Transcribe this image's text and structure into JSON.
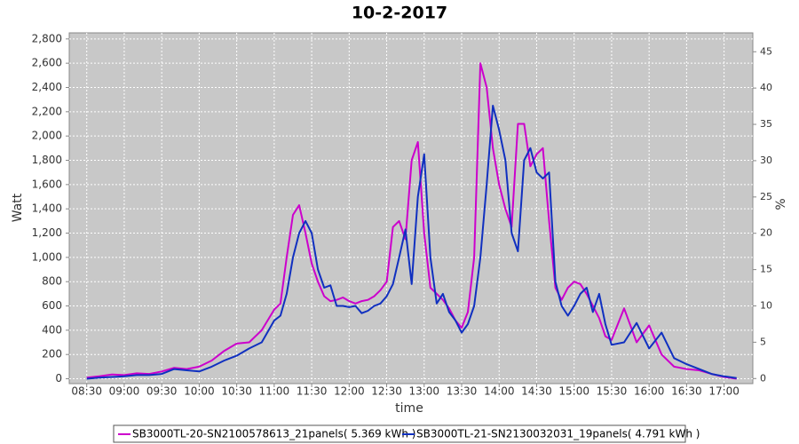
{
  "chart_data": {
    "type": "line",
    "title": "10-2-2017",
    "x_label": "time",
    "y_label": "Watt",
    "y2_label": "%",
    "x": [
      "08:30",
      "08:40",
      "08:50",
      "09:00",
      "09:10",
      "09:20",
      "09:30",
      "09:40",
      "09:50",
      "10:00",
      "10:10",
      "10:20",
      "10:30",
      "10:40",
      "10:50",
      "11:00",
      "11:05",
      "11:10",
      "11:15",
      "11:20",
      "11:25",
      "11:30",
      "11:35",
      "11:40",
      "11:45",
      "11:50",
      "11:55",
      "12:00",
      "12:05",
      "12:10",
      "12:15",
      "12:20",
      "12:25",
      "12:30",
      "12:35",
      "12:40",
      "12:45",
      "12:50",
      "12:55",
      "13:00",
      "13:05",
      "13:10",
      "13:15",
      "13:20",
      "13:25",
      "13:30",
      "13:35",
      "13:40",
      "13:45",
      "13:50",
      "13:55",
      "14:00",
      "14:05",
      "14:10",
      "14:15",
      "14:20",
      "14:25",
      "14:30",
      "14:35",
      "14:40",
      "14:45",
      "14:50",
      "14:55",
      "15:00",
      "15:05",
      "15:10",
      "15:15",
      "15:20",
      "15:25",
      "15:30",
      "15:40",
      "15:50",
      "16:00",
      "16:10",
      "16:20",
      "16:30",
      "16:40",
      "16:50",
      "17:00",
      "17:10"
    ],
    "series": [
      {
        "name": "SB3000TL-20-SN2100578613_21panels( 5.369 kWh )",
        "color": "#cc00cc",
        "values": [
          10,
          20,
          35,
          30,
          45,
          40,
          60,
          90,
          80,
          100,
          150,
          230,
          290,
          300,
          400,
          570,
          620,
          1000,
          1350,
          1430,
          1200,
          950,
          800,
          680,
          640,
          650,
          670,
          640,
          620,
          640,
          650,
          680,
          730,
          800,
          1250,
          1300,
          1150,
          1800,
          1950,
          1200,
          750,
          700,
          650,
          580,
          480,
          420,
          550,
          1000,
          2600,
          2400,
          1900,
          1600,
          1400,
          1250,
          2100,
          2100,
          1750,
          1850,
          1900,
          1300,
          750,
          650,
          750,
          800,
          780,
          700,
          600,
          500,
          350,
          320,
          580,
          300,
          440,
          200,
          100,
          80,
          70,
          40,
          15,
          0
        ]
      },
      {
        "name": "SB3000TL-21-SN2130032031_19panels( 4.791 kWh )",
        "color": "#1030c0",
        "values": [
          0,
          10,
          15,
          20,
          30,
          30,
          40,
          80,
          70,
          60,
          100,
          150,
          190,
          250,
          300,
          480,
          520,
          700,
          1000,
          1200,
          1300,
          1200,
          900,
          750,
          770,
          600,
          600,
          590,
          600,
          540,
          560,
          600,
          620,
          680,
          780,
          1000,
          1230,
          780,
          1500,
          1850,
          1000,
          620,
          700,
          550,
          480,
          380,
          450,
          600,
          1000,
          1600,
          2250,
          2050,
          1800,
          1200,
          1050,
          1800,
          1900,
          1700,
          1650,
          1700,
          800,
          600,
          520,
          600,
          700,
          750,
          550,
          700,
          450,
          280,
          300,
          460,
          250,
          380,
          170,
          120,
          80,
          40,
          20,
          5
        ]
      }
    ],
    "xlim": [
      "08:16",
      "17:23"
    ],
    "xticks": [
      "08:30",
      "09:00",
      "09:30",
      "10:00",
      "10:30",
      "11:00",
      "11:30",
      "12:00",
      "12:30",
      "13:00",
      "13:30",
      "14:00",
      "14:30",
      "15:00",
      "15:30",
      "16:00",
      "16:30",
      "17:00"
    ],
    "ylim": [
      -40,
      2850
    ],
    "yticks": [
      0,
      200,
      400,
      600,
      800,
      {
        "value": 1000,
        "label": "1,000"
      },
      {
        "value": 1200,
        "label": "1,200"
      },
      {
        "value": 1400,
        "label": "1,400"
      },
      {
        "value": 1600,
        "label": "1,600"
      },
      {
        "value": 1800,
        "label": "1,800"
      },
      {
        "value": 2000,
        "label": "2,000"
      },
      {
        "value": 2200,
        "label": "2,200"
      },
      {
        "value": 2400,
        "label": "2,400"
      },
      {
        "value": 2600,
        "label": "2,600"
      },
      {
        "value": 2800,
        "label": "2,800"
      }
    ],
    "y2lim": [
      -0.7,
      47.6
    ],
    "y2ticks": [
      0,
      5,
      10,
      15,
      20,
      25,
      30,
      35,
      40,
      45
    ],
    "grid": true,
    "legend": "bottom"
  }
}
